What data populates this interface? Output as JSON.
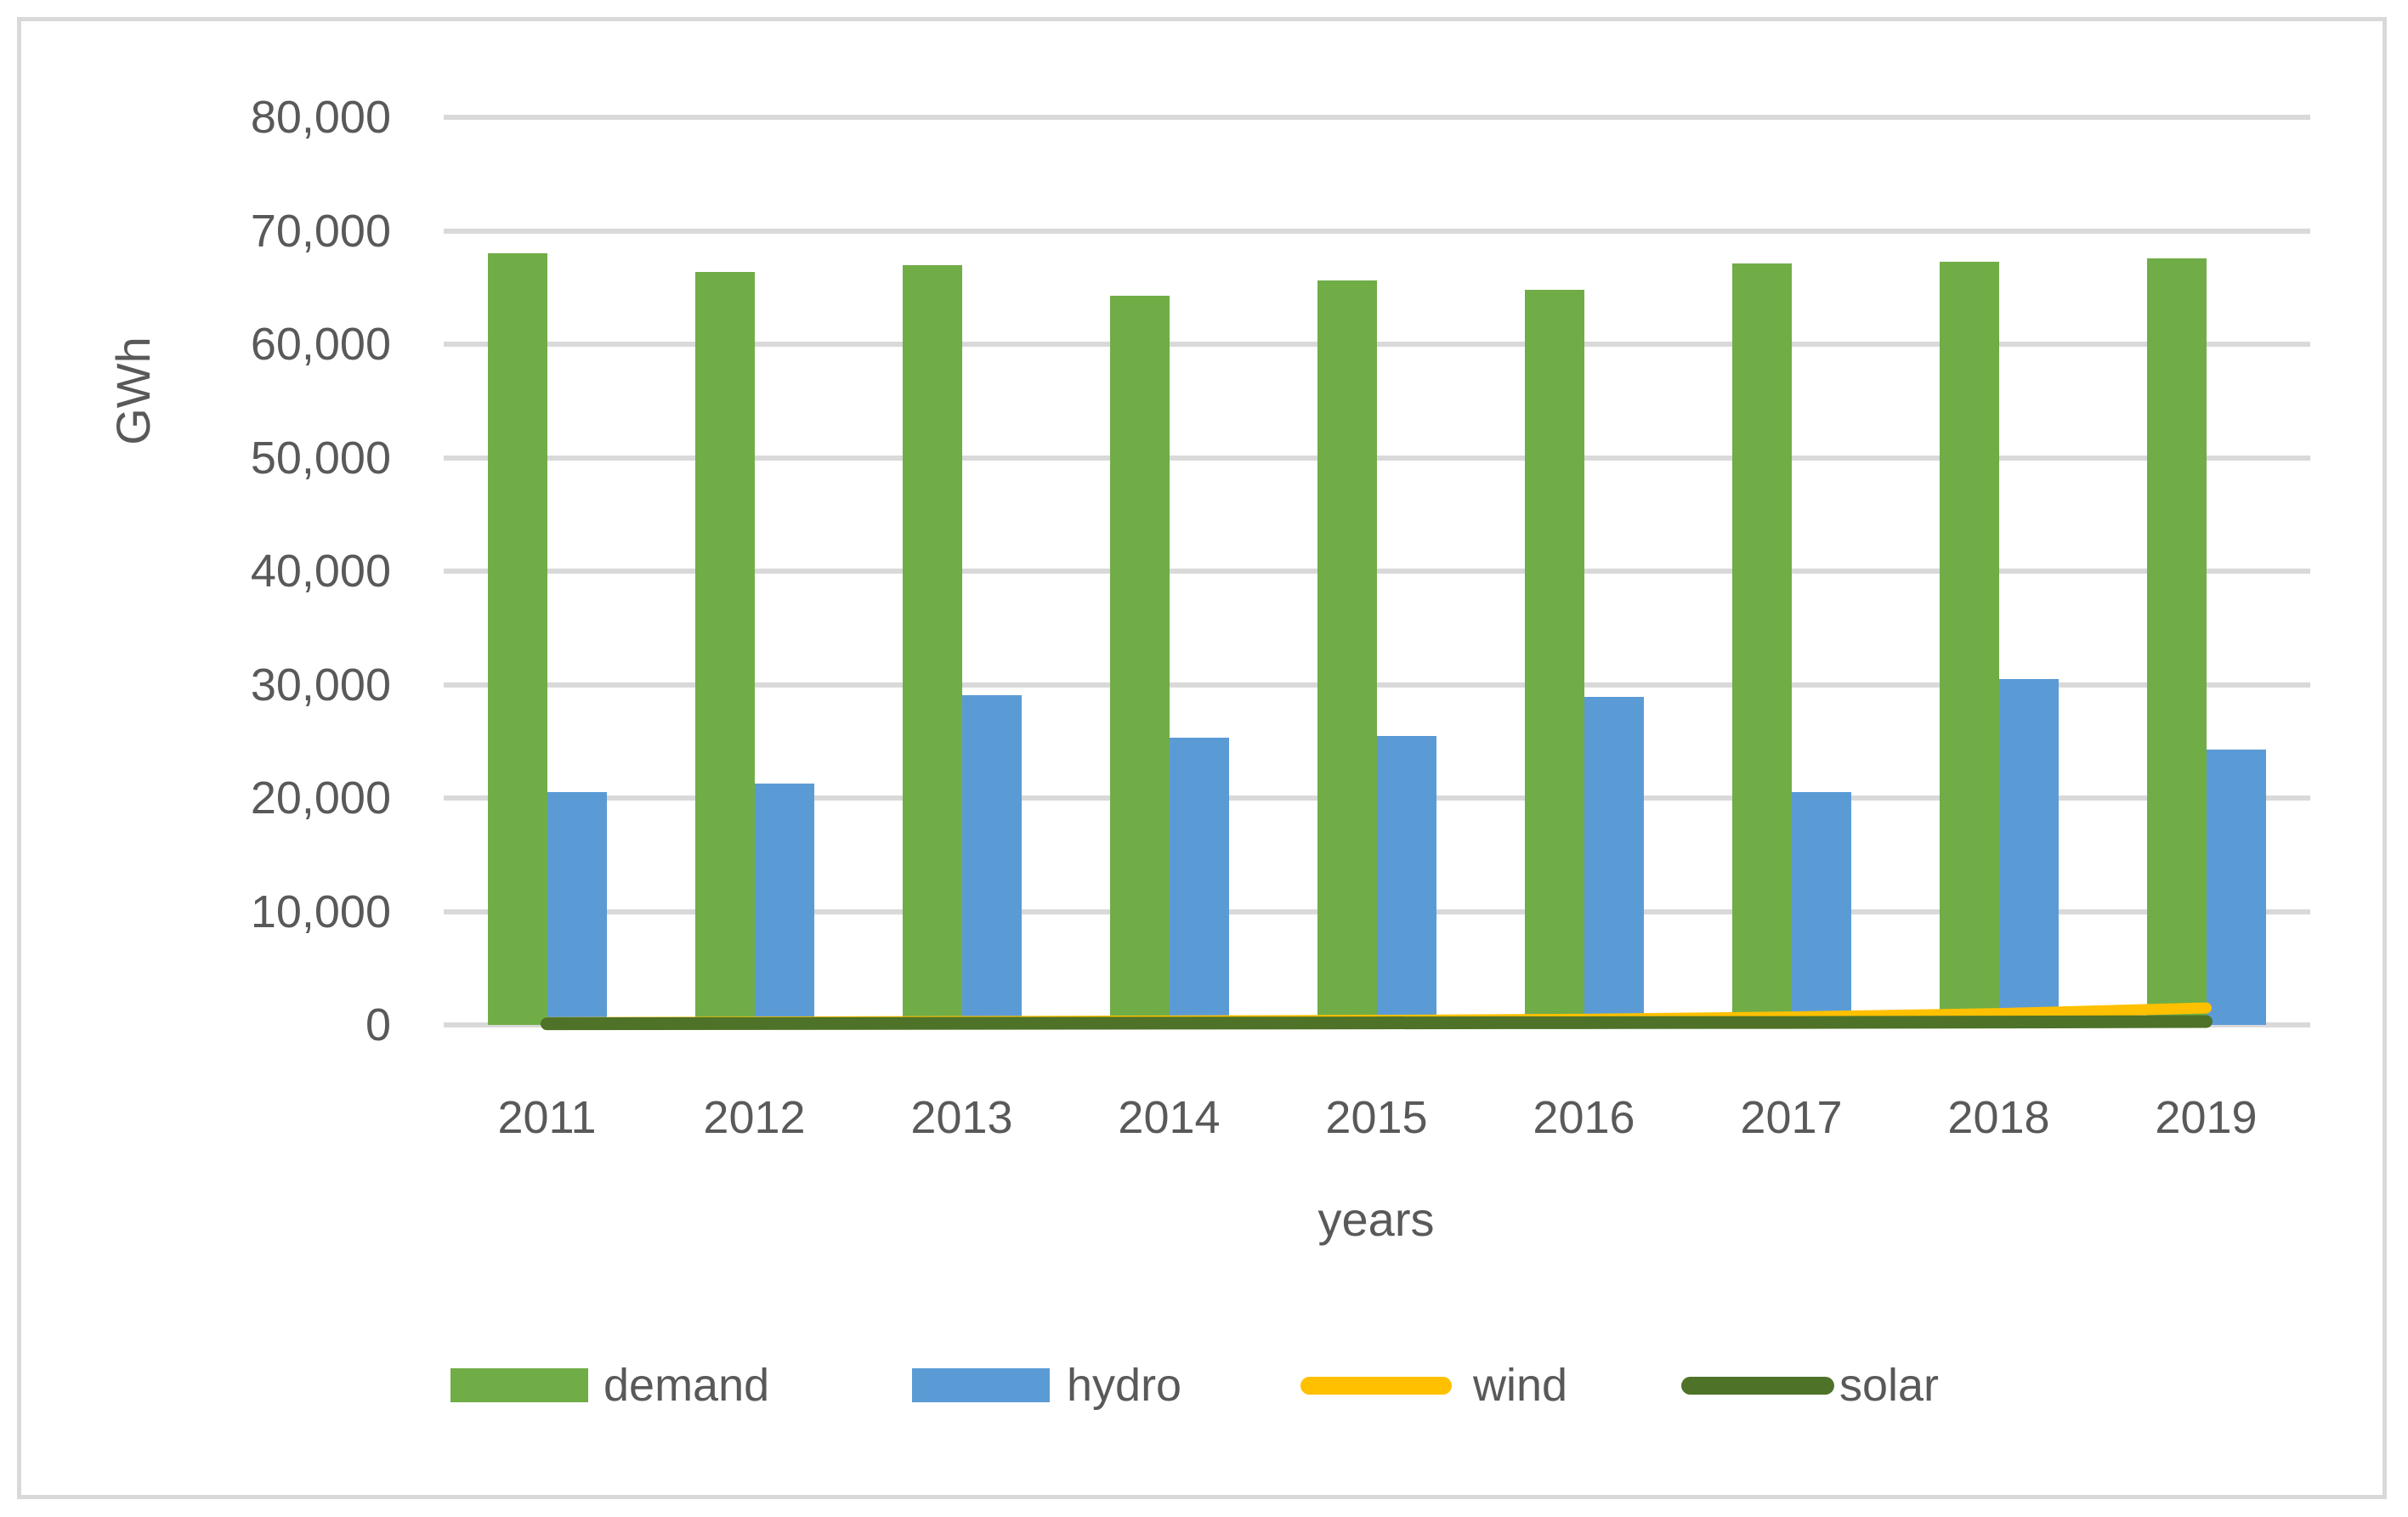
{
  "chart_data": {
    "type": "bar",
    "title": "",
    "categories": [
      "2011",
      "2012",
      "2013",
      "2014",
      "2015",
      "2016",
      "2017",
      "2018",
      "2019"
    ],
    "series": [
      {
        "name": "demand",
        "type": "bar",
        "color": "#70AD47",
        "values": [
          68000,
          66400,
          67000,
          64300,
          65600,
          64800,
          67100,
          67300,
          67600
        ]
      },
      {
        "name": "hydro",
        "type": "bar",
        "color": "#5B9BD5",
        "values": [
          20500,
          21300,
          29100,
          25300,
          25500,
          28900,
          20500,
          30500,
          24300
        ]
      },
      {
        "name": "wind",
        "type": "line",
        "color": "#FFC000",
        "values": [
          200,
          250,
          300,
          350,
          400,
          500,
          700,
          1000,
          1500
        ]
      },
      {
        "name": "solar",
        "type": "line",
        "color": "#4E7227",
        "values": [
          100,
          120,
          140,
          160,
          180,
          200,
          220,
          250,
          300
        ]
      }
    ],
    "xlabel": "years",
    "ylabel": "GWh",
    "ylim": [
      0,
      80000
    ],
    "ytick_interval": 10000,
    "y_tick_labels": [
      "80,000",
      "70,000",
      "60,000",
      "50,000",
      "40,000",
      "30,000",
      "20,000",
      "10,000",
      "0"
    ],
    "grid": true,
    "legend_position": "bottom",
    "legend": [
      {
        "label": "demand",
        "marker": "rect",
        "color": "#70AD47"
      },
      {
        "label": "hydro",
        "marker": "rect",
        "color": "#5B9BD5"
      },
      {
        "label": "wind",
        "marker": "line",
        "color": "#FFC000"
      },
      {
        "label": "solar",
        "marker": "line",
        "color": "#4E7227"
      }
    ],
    "colors": {
      "gridline": "#D9D9D9",
      "border": "#D9D9D9",
      "axis_text": "#595959",
      "background": "#FFFFFF"
    }
  }
}
